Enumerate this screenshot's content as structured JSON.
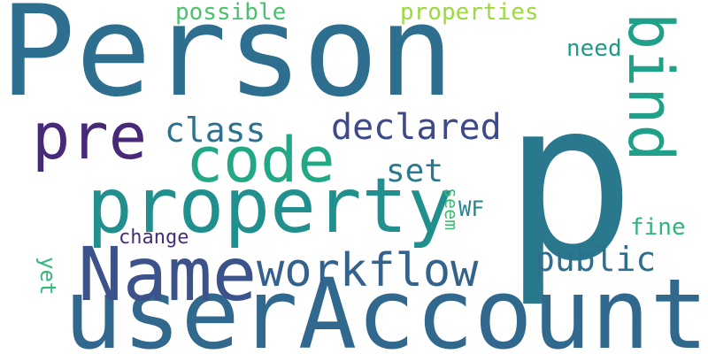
{
  "words": [
    {
      "text": "Person",
      "color": "#2e6e8e",
      "rotate": false
    },
    {
      "text": "p",
      "color": "#2a788e",
      "rotate": false
    },
    {
      "text": "userAccount",
      "color": "#31688e",
      "rotate": false
    },
    {
      "text": "property",
      "color": "#218f8d",
      "rotate": false
    },
    {
      "text": "Name",
      "color": "#3b528b",
      "rotate": false
    },
    {
      "text": "code",
      "color": "#22a884",
      "rotate": false
    },
    {
      "text": "pre",
      "color": "#482878",
      "rotate": false
    },
    {
      "text": "bind",
      "color": "#1fa088",
      "rotate": true
    },
    {
      "text": "workflow",
      "color": "#33638d",
      "rotate": false
    },
    {
      "text": "declared",
      "color": "#3e4989",
      "rotate": false
    },
    {
      "text": "class",
      "color": "#2c728e",
      "rotate": false
    },
    {
      "text": "public",
      "color": "#2d708e",
      "rotate": false
    },
    {
      "text": "set",
      "color": "#2a788e",
      "rotate": false
    },
    {
      "text": "WF",
      "color": "#25848e",
      "rotate": false
    },
    {
      "text": "change",
      "color": "#472d7b",
      "rotate": false
    },
    {
      "text": "seem",
      "color": "#3dbc74",
      "rotate": true
    },
    {
      "text": "fine",
      "color": "#2fb47c",
      "rotate": false
    },
    {
      "text": "need",
      "color": "#1f9a8a",
      "rotate": false
    },
    {
      "text": "yet",
      "color": "#35b779",
      "rotate": true
    },
    {
      "text": "possible",
      "color": "#4ac16d",
      "rotate": false
    },
    {
      "text": "properties",
      "color": "#9bd93c",
      "rotate": false
    }
  ]
}
